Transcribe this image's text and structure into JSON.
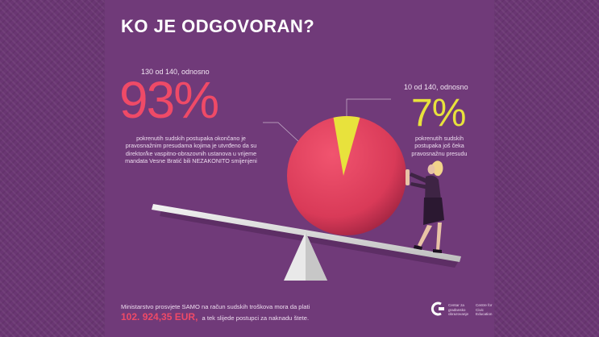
{
  "title": "KO JE ODGOVORAN?",
  "left_block": {
    "lead": "130 od 140, odnosno",
    "percent": "93%",
    "description": "pokrenutih sudskih postupaka okončano je pravosnažnim presudama kojima je utvrđeno da su direktor/ke vaspitno-obrazovnih ustanova u vrijeme mandata Vesne Bratić bili NEZAKONITO smijenjeni"
  },
  "right_block": {
    "lead": "10 od 140, odnosno",
    "percent": "7%",
    "description": "pokrenutih sudskih postupaka još čeka pravosnažnu presudu"
  },
  "footer": {
    "line1": "Ministarstvo prosvjete SAMO na račun sudskih troškova mora da plati",
    "amount": "102. 924,35 EUR,",
    "line2_rest": " a tek slijede postupci za naknadu štete."
  },
  "logo": {
    "line1": "Centar za građansko obrazovanje",
    "line2": "Centre for Civic Education"
  },
  "colors": {
    "background": "#6a3673",
    "panel": "#703a79",
    "accent_pink": "#ef4a67",
    "accent_yellow": "#e8e23c"
  },
  "chart_data": {
    "type": "pie",
    "title": "KO JE ODGOVORAN?",
    "total": 140,
    "slices": [
      {
        "label": "93%",
        "value": 130,
        "color": "#e54362"
      },
      {
        "label": "7%",
        "value": 10,
        "color": "#e8e23c"
      }
    ]
  }
}
